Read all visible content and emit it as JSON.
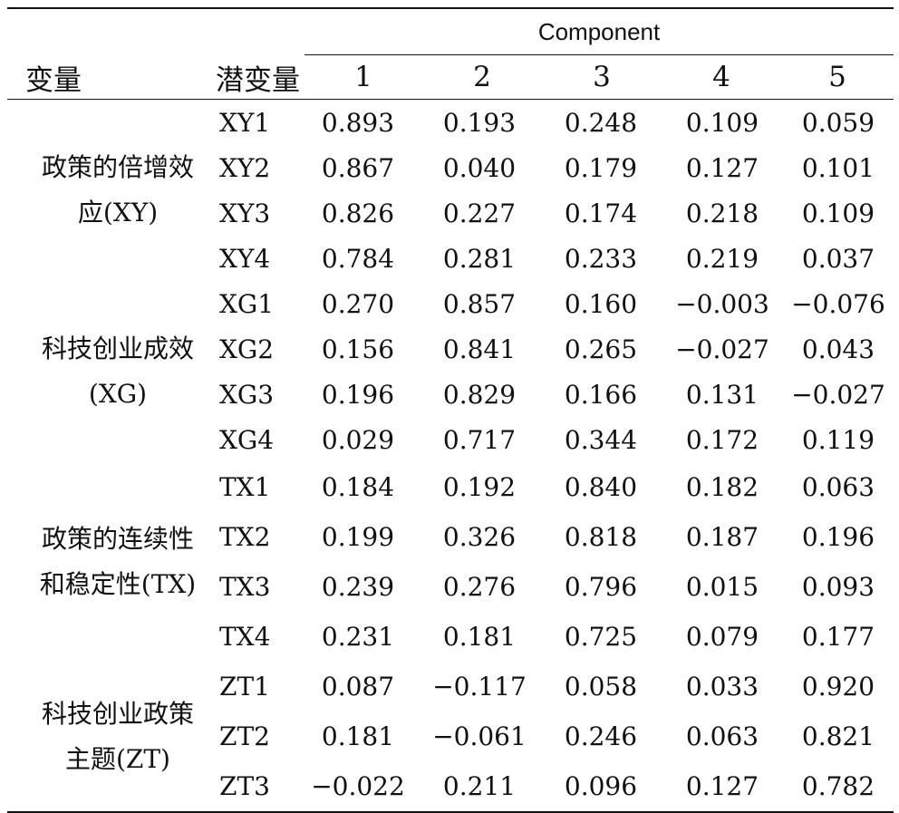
{
  "header": {
    "component_label": "Component",
    "variable_label": "变量",
    "latent_label": "潜变量",
    "component_numbers": [
      "1",
      "2",
      "3",
      "4",
      "5"
    ]
  },
  "groups": [
    {
      "name_lines": [
        "政策的倍增效",
        "应(XY)"
      ],
      "rows": [
        {
          "item": "XY1",
          "values": [
            "0.893",
            "0.193",
            "0.248",
            "0.109",
            "0.059"
          ]
        },
        {
          "item": "XY2",
          "values": [
            "0.867",
            "0.040",
            "0.179",
            "0.127",
            "0.101"
          ]
        },
        {
          "item": "XY3",
          "values": [
            "0.826",
            "0.227",
            "0.174",
            "0.218",
            "0.109"
          ]
        },
        {
          "item": "XY4",
          "values": [
            "0.784",
            "0.281",
            "0.233",
            "0.219",
            "0.037"
          ]
        }
      ]
    },
    {
      "name_lines": [
        "科技创业成效",
        "(XG)"
      ],
      "rows": [
        {
          "item": "XG1",
          "values": [
            "0.270",
            "0.857",
            "0.160",
            "−0.003",
            "−0.076"
          ]
        },
        {
          "item": "XG2",
          "values": [
            "0.156",
            "0.841",
            "0.265",
            "−0.027",
            "0.043"
          ]
        },
        {
          "item": "XG3",
          "values": [
            "0.196",
            "0.829",
            "0.166",
            "0.131",
            "−0.027"
          ]
        },
        {
          "item": "XG4",
          "values": [
            "0.029",
            "0.717",
            "0.344",
            "0.172",
            "0.119"
          ]
        }
      ]
    },
    {
      "name_lines": [
        "政策的连续性",
        "和稳定性(TX)"
      ],
      "rows": [
        {
          "item": "TX1",
          "values": [
            "0.184",
            "0.192",
            "0.840",
            "0.182",
            "0.063"
          ]
        },
        {
          "item": "TX2",
          "values": [
            "0.199",
            "0.326",
            "0.818",
            "0.187",
            "0.196"
          ]
        },
        {
          "item": "TX3",
          "values": [
            "0.239",
            "0.276",
            "0.796",
            "0.015",
            "0.093"
          ]
        },
        {
          "item": "TX4",
          "values": [
            "0.231",
            "0.181",
            "0.725",
            "0.079",
            "0.177"
          ]
        }
      ]
    },
    {
      "name_lines": [
        "科技创业政策",
        "主题(ZT)"
      ],
      "rows": [
        {
          "item": "ZT1",
          "values": [
            "0.087",
            "−0.117",
            "0.058",
            "0.033",
            "0.920"
          ]
        },
        {
          "item": "ZT2",
          "values": [
            "0.181",
            "−0.061",
            "0.246",
            "0.063",
            "0.821"
          ]
        },
        {
          "item": "ZT3",
          "values": [
            "−0.022",
            "0.211",
            "0.096",
            "0.127",
            "0.782"
          ]
        }
      ]
    }
  ]
}
